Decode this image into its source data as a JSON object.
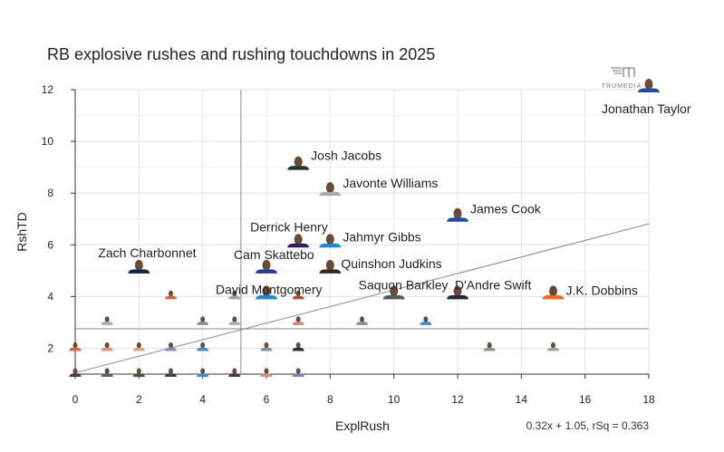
{
  "brand": {
    "name": "TRUMEDIA"
  },
  "chart_data": {
    "type": "scatter",
    "title": "RB explosive rushes and rushing touchdowns in 2025",
    "xlabel": "ExplRush",
    "ylabel": "RshTD",
    "xlim": [
      0,
      18
    ],
    "ylim": [
      1,
      12
    ],
    "xticks": [
      0,
      2,
      4,
      6,
      8,
      10,
      12,
      14,
      16,
      18
    ],
    "yticks": [
      2,
      4,
      6,
      8,
      10,
      12
    ],
    "grid": true,
    "mean_lines": {
      "x": 5.2,
      "y": 2.75
    },
    "fit": {
      "slope": 0.32,
      "intercept": 1.05,
      "label": "0.32x + 1.05, rSq = 0.363"
    },
    "labeled_points": [
      {
        "name": "Jonathan Taylor",
        "x": 18,
        "y": 12,
        "color": "#1f4e9c"
      },
      {
        "name": "Josh Jacobs",
        "x": 7,
        "y": 9,
        "color": "#203731"
      },
      {
        "name": "Javonte Williams",
        "x": 8,
        "y": 8,
        "color": "#a5acaf"
      },
      {
        "name": "James Cook",
        "x": 12,
        "y": 7,
        "color": "#1b4ea3"
      },
      {
        "name": "Derrick Henry",
        "x": 7,
        "y": 6,
        "color": "#2b1f62"
      },
      {
        "name": "Jahmyr Gibbs",
        "x": 8,
        "y": 6,
        "color": "#1a8ad4"
      },
      {
        "name": "Zach Charbonnet",
        "x": 2,
        "y": 5,
        "color": "#0b2545"
      },
      {
        "name": "Cam Skattebo",
        "x": 6,
        "y": 5,
        "color": "#1f3d99"
      },
      {
        "name": "Quinshon Judkins",
        "x": 8,
        "y": 5,
        "color": "#3b2417"
      },
      {
        "name": "David Montgomery",
        "x": 6,
        "y": 4,
        "color": "#1a8ad4"
      },
      {
        "name": "Saquon Barkley",
        "x": 10,
        "y": 4,
        "color": "#4b5d63"
      },
      {
        "name": "D'Andre Swift",
        "x": 12,
        "y": 4,
        "color": "#1f2a44"
      },
      {
        "name": "J.K. Dobbins",
        "x": 15,
        "y": 4,
        "color": "#f26a1b"
      }
    ],
    "unlabeled_points": [
      {
        "x": 3,
        "y": 4,
        "color": "#e06040"
      },
      {
        "x": 5,
        "y": 4,
        "color": "#a0a0a0"
      },
      {
        "x": 7,
        "y": 4,
        "color": "#b05030"
      },
      {
        "x": 1,
        "y": 3,
        "color": "#b0b0b0"
      },
      {
        "x": 4,
        "y": 3,
        "color": "#909090"
      },
      {
        "x": 5,
        "y": 3,
        "color": "#b0b0b0"
      },
      {
        "x": 7,
        "y": 3,
        "color": "#e08080"
      },
      {
        "x": 9,
        "y": 3,
        "color": "#909090"
      },
      {
        "x": 11,
        "y": 3,
        "color": "#3a8fd0"
      },
      {
        "x": 0,
        "y": 2,
        "color": "#e06040"
      },
      {
        "x": 1,
        "y": 2,
        "color": "#e09080"
      },
      {
        "x": 2,
        "y": 2,
        "color": "#e0a080"
      },
      {
        "x": 3,
        "y": 2,
        "color": "#8090b0"
      },
      {
        "x": 4,
        "y": 2,
        "color": "#3a8fd0"
      },
      {
        "x": 6,
        "y": 2,
        "color": "#8090a0"
      },
      {
        "x": 7,
        "y": 2,
        "color": "#303030"
      },
      {
        "x": 13,
        "y": 2,
        "color": "#909090"
      },
      {
        "x": 15,
        "y": 2,
        "color": "#a0a0a0"
      },
      {
        "x": 0,
        "y": 1,
        "color": "#404040"
      },
      {
        "x": 1,
        "y": 1,
        "color": "#606060"
      },
      {
        "x": 2,
        "y": 1,
        "color": "#505050"
      },
      {
        "x": 3,
        "y": 1,
        "color": "#404040"
      },
      {
        "x": 4,
        "y": 1,
        "color": "#3a8fd0"
      },
      {
        "x": 5,
        "y": 1,
        "color": "#404040"
      },
      {
        "x": 6,
        "y": 1,
        "color": "#d09080"
      },
      {
        "x": 7,
        "y": 1,
        "color": "#8080c0"
      }
    ]
  }
}
